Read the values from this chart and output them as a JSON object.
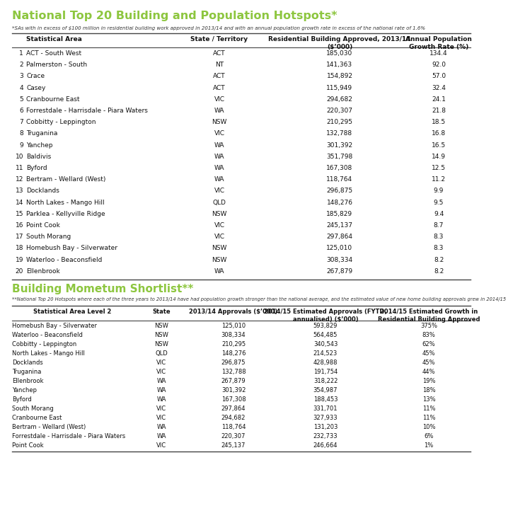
{
  "title": "National Top 20 Building and Population Hotspots*",
  "subtitle": "*SAs with in excess of $100 million in residential building work approved in 2013/14 and with an annual population growth rate in excess of the national rate of 1.6%",
  "title_color": "#8dc63f",
  "bg_color": "#ffffff",
  "top_table_headers_col1": "Statistical Area",
  "top_table_headers_col2": "State / Territory",
  "top_table_headers_col3": "Residential Building Approved, 2013/14\n($’000)",
  "top_table_headers_col4": "Annual Population\nGrowth Rate (%)",
  "top_rows": [
    [
      "1",
      "ACT - South West",
      "ACT",
      "185,030",
      "134.4"
    ],
    [
      "2",
      "Palmerston - South",
      "NT",
      "141,363",
      "92.0"
    ],
    [
      "3",
      "Crace",
      "ACT",
      "154,892",
      "57.0"
    ],
    [
      "4",
      "Casey",
      "ACT",
      "115,949",
      "32.4"
    ],
    [
      "5",
      "Cranbourne East",
      "VIC",
      "294,682",
      "24.1"
    ],
    [
      "6",
      "Forrestdale - Harrisdale - Piara Waters",
      "WA",
      "220,307",
      "21.8"
    ],
    [
      "7",
      "Cobbitty - Leppington",
      "NSW",
      "210,295",
      "18.5"
    ],
    [
      "8",
      "Truganina",
      "VIC",
      "132,788",
      "16.8"
    ],
    [
      "9",
      "Yanchep",
      "WA",
      "301,392",
      "16.5"
    ],
    [
      "10",
      "Baldivis",
      "WA",
      "351,798",
      "14.9"
    ],
    [
      "11",
      "Byford",
      "WA",
      "167,308",
      "12.5"
    ],
    [
      "12",
      "Bertram - Wellard (West)",
      "WA",
      "118,764",
      "11.2"
    ],
    [
      "13",
      "Docklands",
      "VIC",
      "296,875",
      "9.9"
    ],
    [
      "14",
      "North Lakes - Mango Hill",
      "QLD",
      "148,276",
      "9.5"
    ],
    [
      "15",
      "Parklea - Kellyville Ridge",
      "NSW",
      "185,829",
      "9.4"
    ],
    [
      "16",
      "Point Cook",
      "VIC",
      "245,137",
      "8.7"
    ],
    [
      "17",
      "South Morang",
      "VIC",
      "297,864",
      "8.3"
    ],
    [
      "18",
      "Homebush Bay - Silverwater",
      "NSW",
      "125,010",
      "8.3"
    ],
    [
      "19",
      "Waterloo - Beaconsfield",
      "NSW",
      "308,334",
      "8.2"
    ],
    [
      "20",
      "Ellenbrook",
      "WA",
      "267,879",
      "8.2"
    ]
  ],
  "section2_title": "Building Mometum Shortlist**",
  "section2_subtitle": "**National Top 20 Hotspots where each of the three years to 2013/14 have had population growth stronger than the national average, and the estimated value of new home building approvals grew in 2014/15",
  "bot_table_headers": [
    "Statistical Area Level 2",
    "State",
    "2013/14 Approvals ($’000)",
    "2014/15 Estimated Approvals (FYTD,\nannualised) ($’000)",
    "2014/15 Estimated Growth in\nResidential Building Approved"
  ],
  "bot_rows": [
    [
      "Homebush Bay - Silverwater",
      "NSW",
      "125,010",
      "593,829",
      "375%"
    ],
    [
      "Waterloo - Beaconsfield",
      "NSW",
      "308,334",
      "564,485",
      "83%"
    ],
    [
      "Cobbitty - Leppington",
      "NSW",
      "210,295",
      "340,543",
      "62%"
    ],
    [
      "North Lakes - Mango Hill",
      "QLD",
      "148,276",
      "214,523",
      "45%"
    ],
    [
      "Docklands",
      "VIC",
      "296,875",
      "428,988",
      "45%"
    ],
    [
      "Truganina",
      "VIC",
      "132,788",
      "191,754",
      "44%"
    ],
    [
      "Ellenbrook",
      "WA",
      "267,879",
      "318,222",
      "19%"
    ],
    [
      "Yanchep",
      "WA",
      "301,392",
      "354,987",
      "18%"
    ],
    [
      "Byford",
      "WA",
      "167,308",
      "188,453",
      "13%"
    ],
    [
      "South Morang",
      "VIC",
      "297,864",
      "331,701",
      "11%"
    ],
    [
      "Cranbourne East",
      "VIC",
      "294,682",
      "327,933",
      "11%"
    ],
    [
      "Bertram - Wellard (West)",
      "WA",
      "118,764",
      "131,203",
      "10%"
    ],
    [
      "Forrestdale - Harrisdale - Piara Waters",
      "WA",
      "220,307",
      "232,733",
      "6%"
    ],
    [
      "Point Cook",
      "VIC",
      "245,137",
      "246,664",
      "1%"
    ]
  ],
  "line_color": "#444444",
  "text_color": "#111111"
}
